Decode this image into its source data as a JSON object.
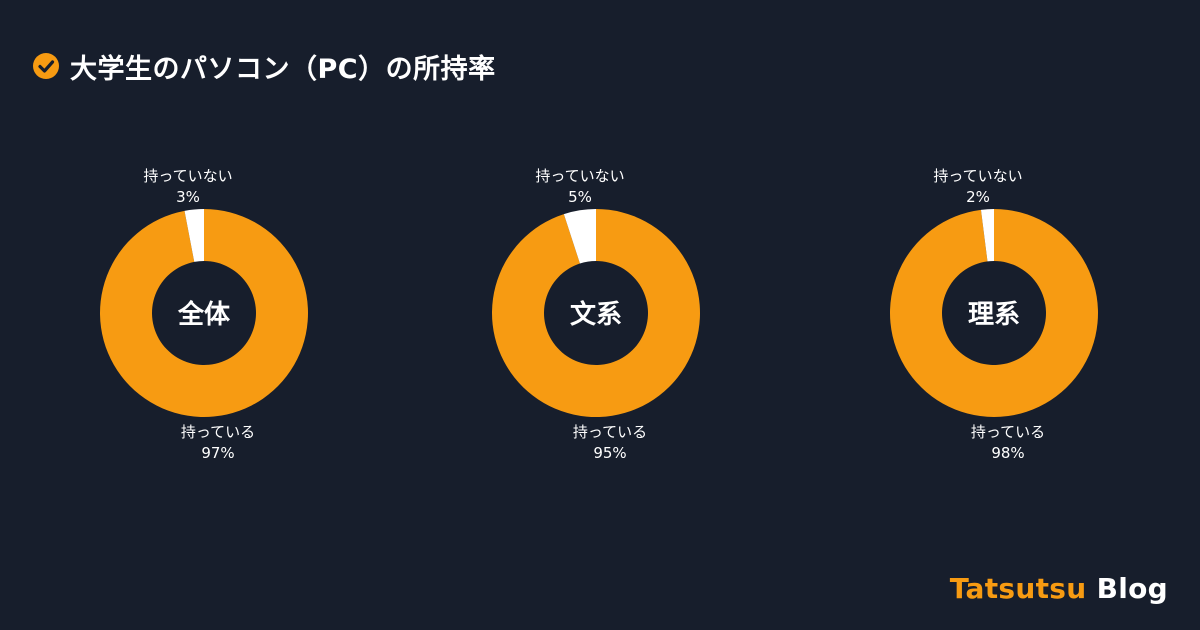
{
  "title": "大学生のパソコン（PC）の所持率",
  "brand": {
    "part1": "Tatsutsu",
    "part2": "Blog"
  },
  "colors": {
    "background": "#171e2c",
    "accent": "#f79b12",
    "minor": "#ffffff"
  },
  "icons": {
    "title": "check-circle-icon"
  },
  "chart_data": [
    {
      "type": "pie",
      "center_label": "全体",
      "slices": [
        {
          "label": "持っている",
          "value": 97,
          "value_label": "97%"
        },
        {
          "label": "持っていない",
          "value": 3,
          "value_label": "3%"
        }
      ]
    },
    {
      "type": "pie",
      "center_label": "文系",
      "slices": [
        {
          "label": "持っている",
          "value": 95,
          "value_label": "95%"
        },
        {
          "label": "持っていない",
          "value": 5,
          "value_label": "5%"
        }
      ]
    },
    {
      "type": "pie",
      "center_label": "理系",
      "slices": [
        {
          "label": "持っている",
          "value": 98,
          "value_label": "98%"
        },
        {
          "label": "持っていない",
          "value": 2,
          "value_label": "2%"
        }
      ]
    }
  ]
}
